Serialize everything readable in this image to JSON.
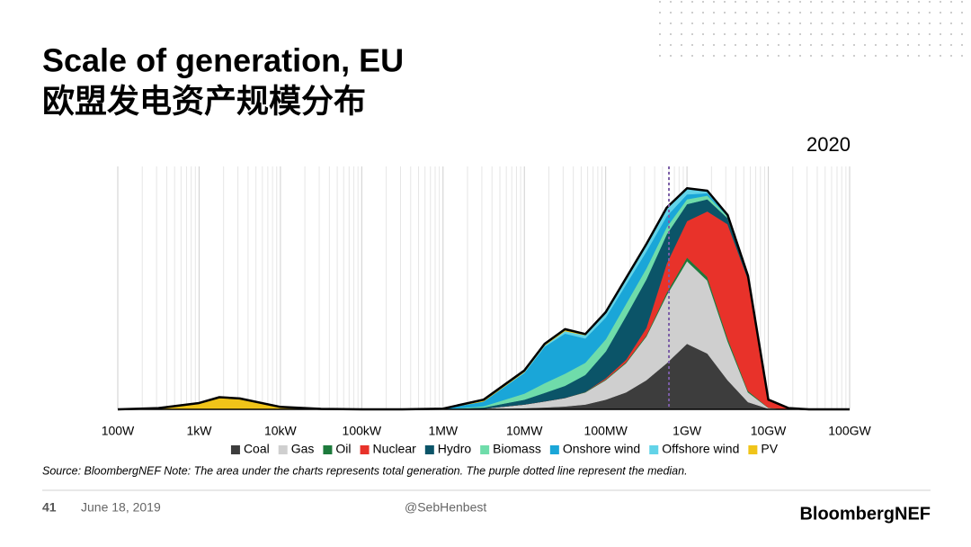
{
  "title": "Scale of generation, EU",
  "subtitle": "欧盟发电资产规模分布",
  "chart_data": {
    "type": "stacked_area",
    "annotation": "2020",
    "x": [
      100,
      316,
      1000,
      1778,
      3162,
      10000,
      31623,
      100000,
      316228,
      1000000,
      3162278,
      10000000,
      17782794,
      31622777,
      56234133,
      100000000,
      177827941,
      316227766,
      562341325,
      1000000000,
      1778279410,
      3162277660,
      5623413252,
      10000000000,
      17782794100,
      31622776602,
      100000000000
    ],
    "log_x": true,
    "xlim": [
      100,
      100000000000
    ],
    "xticks": [
      {
        "value": 100,
        "label": "100W"
      },
      {
        "value": 1000,
        "label": "1kW"
      },
      {
        "value": 10000,
        "label": "10kW"
      },
      {
        "value": 100000,
        "label": "100kW"
      },
      {
        "value": 1000000,
        "label": "1MW"
      },
      {
        "value": 10000000,
        "label": "10MW"
      },
      {
        "value": 100000000,
        "label": "100MW"
      },
      {
        "value": 1000000000,
        "label": "1GW"
      },
      {
        "value": 10000000000,
        "label": "10GW"
      },
      {
        "value": 100000000000,
        "label": "100GW"
      }
    ],
    "ylim": [
      0,
      100
    ],
    "grid": true,
    "median": 600000000,
    "median_color": "#7b5ea7",
    "series": [
      {
        "name": "Coal",
        "color": "#3d3d3d",
        "values": [
          0,
          0,
          0,
          0,
          0,
          0,
          0,
          0,
          0,
          0,
          0,
          0.5,
          0.8,
          1.2,
          2,
          4,
          7,
          12,
          19,
          27,
          23,
          12,
          3,
          0.3,
          0,
          0,
          0
        ]
      },
      {
        "name": "Gas",
        "color": "#cfcfcf",
        "values": [
          0,
          0,
          0,
          0,
          0,
          0,
          0,
          0,
          0,
          0,
          0.3,
          1.5,
          2.5,
          3.5,
          5,
          8,
          12,
          18,
          28,
          34,
          30,
          16,
          4,
          0.3,
          0,
          0,
          0
        ]
      },
      {
        "name": "Oil",
        "color": "#1d7a3c",
        "values": [
          0,
          0,
          0,
          0,
          0,
          0,
          0,
          0,
          0,
          0,
          0,
          0,
          0,
          0,
          0.2,
          0.3,
          0.4,
          0.5,
          1,
          1.5,
          1.5,
          1.2,
          0.6,
          0.1,
          0,
          0,
          0
        ]
      },
      {
        "name": "Nuclear",
        "color": "#e8322a",
        "values": [
          0,
          0,
          0,
          0,
          0,
          0,
          0,
          0,
          0,
          0,
          0,
          0,
          0,
          0,
          0,
          0.5,
          1,
          3,
          12,
          15,
          27,
          47,
          46,
          3,
          0.5,
          0,
          0
        ]
      },
      {
        "name": "Hydro",
        "color": "#0b5468",
        "values": [
          0,
          0,
          0,
          0,
          0,
          0,
          0,
          0,
          0,
          0,
          0.5,
          2,
          3.5,
          5,
          7,
          11,
          18,
          20,
          12,
          7,
          5,
          2.5,
          1,
          0.3,
          0,
          0,
          0
        ]
      },
      {
        "name": "Biomass",
        "color": "#6fdcaa",
        "values": [
          0,
          0,
          0,
          0,
          0,
          0,
          0,
          0,
          0,
          0,
          0.5,
          2.5,
          4,
          5,
          5,
          5,
          5,
          4.5,
          3,
          2,
          1.5,
          0.8,
          0.3,
          0,
          0,
          0,
          0
        ]
      },
      {
        "name": "Onshore wind",
        "color": "#1aa6d8",
        "values": [
          0,
          0,
          0,
          0,
          0,
          0,
          0,
          0,
          0,
          0.2,
          2,
          8.5,
          15,
          16.5,
          10,
          9,
          8,
          7,
          4.5,
          2,
          1,
          0.3,
          0.1,
          0,
          0,
          0,
          0
        ]
      },
      {
        "name": "Offshore wind",
        "color": "#62d3e8",
        "values": [
          0,
          0,
          0,
          0,
          0,
          0,
          0,
          0,
          0,
          0,
          0,
          0.3,
          0.5,
          1,
          1.3,
          2,
          2.5,
          3,
          3.5,
          2.5,
          1,
          0.2,
          0,
          0,
          0,
          0,
          0
        ]
      },
      {
        "name": "PV",
        "color": "#f0c419",
        "values": [
          0,
          0.5,
          2.6,
          5,
          4.5,
          1,
          0.2,
          0,
          0,
          0.1,
          0.7,
          0.7,
          0.7,
          0.8,
          0.5,
          0.2,
          0.1,
          0,
          0,
          0,
          0,
          0,
          0,
          0,
          0,
          0,
          0
        ]
      }
    ]
  },
  "source_note": "Source: BloombergNEF  Note: The area under the charts represents total generation. The purple dotted line represent the median.",
  "footer": {
    "page": "41",
    "date": "June 18, 2019",
    "handle": "@SebHenbest",
    "logo": "BloombergNEF"
  }
}
